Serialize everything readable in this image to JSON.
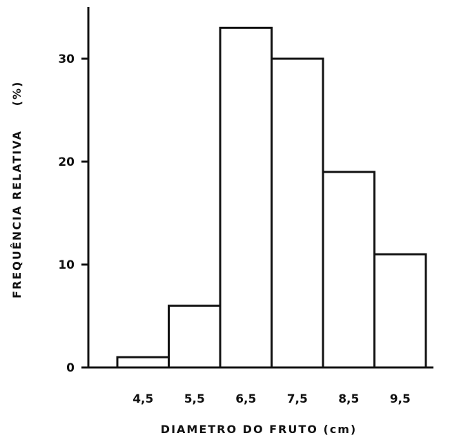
{
  "chart_data": {
    "type": "bar",
    "categories": [
      "4,5",
      "5,5",
      "6,5",
      "7,5",
      "8,5",
      "9,5"
    ],
    "values": [
      1,
      6,
      33,
      30,
      19,
      11
    ],
    "xlabel": "DIAMETRO DO FRUTO (cm)",
    "ylabel_main": "FREQUÊNCIA RELATIVA",
    "ylabel_unit": "(%)",
    "ylim": [
      0,
      35
    ],
    "yticks": [
      0,
      10,
      20,
      30
    ],
    "ytick_labels": [
      "0",
      "10",
      "20",
      "30"
    ],
    "grid": false,
    "bar_fill": "#ffffff",
    "stroke_color": "#111111"
  }
}
